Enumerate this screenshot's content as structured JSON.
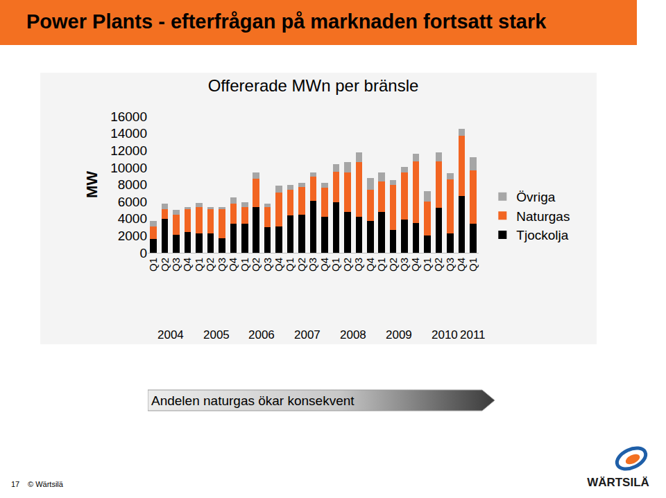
{
  "slide": {
    "title": "Power Plants - efterfrågan på marknaden fortsatt stark",
    "callout": "Andelen naturgas ökar konsekvent",
    "page_number": "17",
    "footer": "© Wärtsilä",
    "logo": "WÄRTSILÄ"
  },
  "chart_data": {
    "type": "bar",
    "stacked": true,
    "title": "Offererade MWn per bränsle",
    "y_label": "MW",
    "categories": [
      "Q1",
      "Q2",
      "Q3",
      "Q4",
      "Q1",
      "Q2",
      "Q3",
      "Q4",
      "Q1",
      "Q2",
      "Q3",
      "Q4",
      "Q1",
      "Q2",
      "Q3",
      "Q4",
      "Q1",
      "Q2",
      "Q3",
      "Q4",
      "Q1",
      "Q2",
      "Q3",
      "Q4",
      "Q1",
      "Q2",
      "Q3",
      "Q4",
      "Q1"
    ],
    "years": [
      "2004",
      "2005",
      "2006",
      "2007",
      "2008",
      "2009",
      "2010",
      "2011"
    ],
    "series": [
      {
        "name": "Tjockolja",
        "color": "#000000",
        "values": [
          1600,
          4000,
          2100,
          2400,
          2300,
          2300,
          1700,
          3400,
          3400,
          5400,
          3000,
          3100,
          4400,
          4500,
          6100,
          4200,
          5900,
          4800,
          4200,
          3700,
          4800,
          2700,
          3900,
          3500,
          2000,
          5300,
          2300,
          6700,
          3400
        ]
      },
      {
        "name": "Naturgas",
        "color": "#f26522",
        "values": [
          1500,
          1100,
          2400,
          2700,
          3100,
          2800,
          3400,
          2400,
          2000,
          3300,
          2400,
          4000,
          3000,
          3200,
          2800,
          3400,
          3600,
          4600,
          6400,
          3700,
          3600,
          5300,
          5500,
          7200,
          4000,
          5400,
          6300,
          7000,
          6300
        ]
      },
      {
        "name": "Övriga",
        "color": "#a6a6a6",
        "values": [
          600,
          700,
          500,
          300,
          450,
          300,
          300,
          700,
          500,
          700,
          400,
          800,
          600,
          500,
          500,
          600,
          900,
          1200,
          1200,
          1400,
          1000,
          500,
          700,
          900,
          1200,
          1100,
          700,
          800,
          1500
        ]
      }
    ],
    "ylim": [
      0,
      16000
    ],
    "yticks": [
      0,
      2000,
      4000,
      6000,
      8000,
      10000,
      12000,
      14000,
      16000
    ],
    "grid": false,
    "legend": "right",
    "tick_labels": true
  }
}
